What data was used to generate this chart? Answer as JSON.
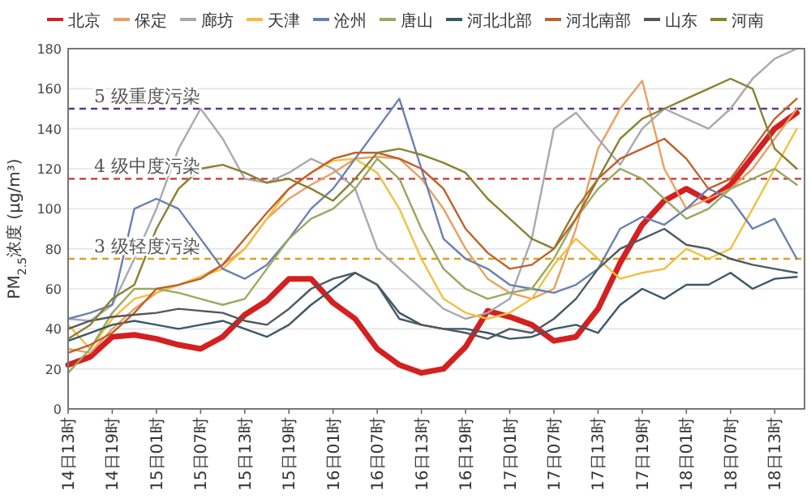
{
  "chart_data": {
    "type": "line",
    "ylabel": "PM$_{2.5}$浓度 (μg/m³)",
    "categories": [
      "14日13时",
      null,
      "14日19时",
      null,
      "15日01时",
      null,
      "15日07时",
      null,
      "15日13时",
      null,
      "15日19时",
      null,
      "16日01时",
      null,
      "16日07时",
      null,
      "16日13时",
      null,
      "16日19时",
      null,
      "17日01时",
      null,
      "17日07时",
      null,
      "17日13时",
      null,
      "17日19时",
      null,
      "18日01时",
      null,
      "18日07时",
      null,
      "18日13时",
      null
    ],
    "ylim": [
      0,
      180
    ],
    "yticks": [
      0,
      20,
      40,
      60,
      80,
      100,
      120,
      140,
      160,
      180
    ],
    "grid": "y",
    "legend": "top",
    "line_style": "solid",
    "marker": "none",
    "series": [
      {
        "name": "北京",
        "color": "#d42020",
        "values": [
          22,
          26,
          36,
          37,
          35,
          32,
          30,
          36,
          47,
          54,
          65,
          65,
          53,
          45,
          30,
          22,
          18,
          20,
          31,
          49,
          46,
          42,
          34,
          36,
          50,
          73,
          92,
          104,
          110,
          104,
          112,
          126,
          140,
          148
        ]
      },
      {
        "name": "保定",
        "color": "#e8a060",
        "values": [
          30,
          28,
          40,
          50,
          58,
          62,
          66,
          72,
          80,
          95,
          105,
          112,
          118,
          125,
          126,
          125,
          115,
          100,
          80,
          65,
          58,
          55,
          60,
          90,
          130,
          150,
          164,
          120,
          100,
          105,
          110,
          120,
          135,
          150
        ]
      },
      {
        "name": "廊坊",
        "color": "#a8a8b0",
        "values": [
          45,
          44,
          52,
          75,
          100,
          130,
          150,
          135,
          115,
          113,
          118,
          125,
          120,
          110,
          80,
          70,
          60,
          50,
          45,
          48,
          55,
          85,
          140,
          148,
          135,
          122,
          140,
          150,
          145,
          140,
          150,
          165,
          175,
          180
        ]
      },
      {
        "name": "天津",
        "color": "#f0c040",
        "values": [
          42,
          30,
          45,
          55,
          58,
          62,
          66,
          70,
          80,
          95,
          110,
          118,
          124,
          125,
          118,
          100,
          75,
          55,
          48,
          45,
          48,
          55,
          72,
          85,
          75,
          65,
          68,
          70,
          80,
          75,
          80,
          100,
          120,
          140
        ]
      },
      {
        "name": "沧州",
        "color": "#6a80b0",
        "values": [
          45,
          48,
          52,
          100,
          105,
          100,
          85,
          70,
          65,
          72,
          85,
          100,
          110,
          125,
          140,
          155,
          120,
          85,
          75,
          70,
          62,
          60,
          58,
          62,
          70,
          90,
          96,
          92,
          100,
          110,
          105,
          90,
          95,
          75
        ]
      },
      {
        "name": "唐山",
        "color": "#9aa860",
        "values": [
          18,
          30,
          48,
          60,
          60,
          58,
          55,
          52,
          55,
          70,
          85,
          95,
          100,
          110,
          125,
          115,
          90,
          70,
          60,
          55,
          58,
          60,
          75,
          95,
          110,
          120,
          115,
          105,
          95,
          100,
          110,
          115,
          120,
          112
        ]
      },
      {
        "name": "河北北部",
        "color": "#3a5868",
        "values": [
          34,
          38,
          42,
          44,
          42,
          40,
          42,
          44,
          40,
          36,
          42,
          52,
          60,
          68,
          62,
          48,
          42,
          40,
          40,
          38,
          35,
          36,
          40,
          42,
          38,
          52,
          60,
          55,
          62,
          62,
          68,
          60,
          65,
          66
        ]
      },
      {
        "name": "河北南部",
        "color": "#c0602a",
        "values": [
          28,
          32,
          38,
          48,
          60,
          62,
          65,
          72,
          85,
          98,
          110,
          118,
          125,
          128,
          128,
          125,
          120,
          110,
          90,
          78,
          70,
          72,
          80,
          95,
          115,
          125,
          130,
          135,
          125,
          110,
          115,
          130,
          145,
          155
        ]
      },
      {
        "name": "山东",
        "color": "#505860",
        "values": [
          40,
          44,
          46,
          47,
          48,
          50,
          49,
          48,
          44,
          42,
          50,
          60,
          65,
          68,
          62,
          45,
          42,
          40,
          38,
          35,
          40,
          38,
          45,
          55,
          70,
          80,
          85,
          90,
          82,
          80,
          75,
          72,
          70,
          68
        ]
      },
      {
        "name": "河南",
        "color": "#8a8030",
        "values": [
          35,
          42,
          55,
          62,
          90,
          110,
          120,
          122,
          118,
          113,
          115,
          110,
          104,
          115,
          128,
          130,
          127,
          123,
          118,
          105,
          95,
          85,
          80,
          100,
          115,
          135,
          145,
          150,
          155,
          160,
          165,
          160,
          130,
          120
        ]
      }
    ],
    "ref_lines": [
      {
        "axis": "y",
        "value": 150,
        "label": "5 级重度污染",
        "color": "#5a3a8a",
        "line_style": "dashed"
      },
      {
        "axis": "y",
        "value": 115,
        "label": "4 级中度污染",
        "color": "#d03030",
        "line_style": "dashed"
      },
      {
        "axis": "y",
        "value": 75,
        "label": "3 级轻度污染",
        "color": "#e0a020",
        "line_style": "dashed"
      }
    ]
  }
}
